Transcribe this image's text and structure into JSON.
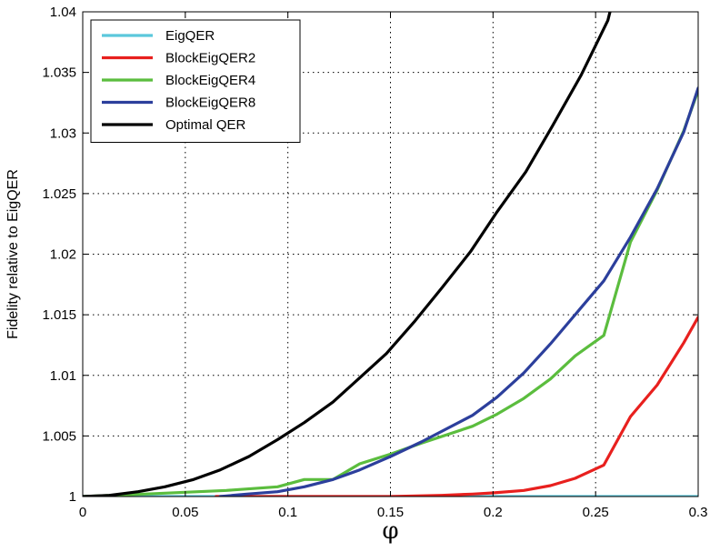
{
  "chart_data": {
    "type": "line",
    "title": "",
    "xlabel": "φ",
    "ylabel": "Fidelity relative to EigQER",
    "xlim": [
      0,
      0.3
    ],
    "ylim": [
      1,
      1.04
    ],
    "xticks": [
      0,
      0.05,
      0.1,
      0.15,
      0.2,
      0.25,
      0.3
    ],
    "xtick_labels": [
      "0",
      "0.05",
      "0.1",
      "0.15",
      "0.2",
      "0.25",
      "0.3"
    ],
    "yticks": [
      1,
      1.005,
      1.01,
      1.015,
      1.02,
      1.025,
      1.03,
      1.035,
      1.04
    ],
    "ytick_labels": [
      "1",
      "1.005",
      "1.01",
      "1.015",
      "1.02",
      "1.025",
      "1.03",
      "1.035",
      "1.04"
    ],
    "grid": true,
    "legend_position": "top-left",
    "series": [
      {
        "name": "EigQER",
        "color": "#5bc8dc",
        "points": [
          [
            0,
            1.0
          ],
          [
            0.3,
            1.0
          ]
        ]
      },
      {
        "name": "BlockEigQER2",
        "color": "#e8201e",
        "points": [
          [
            0.065,
            1.0
          ],
          [
            0.1,
            1.0
          ],
          [
            0.15,
            1.0
          ],
          [
            0.175,
            1.0001
          ],
          [
            0.19,
            1.0002
          ],
          [
            0.2,
            1.0003
          ],
          [
            0.215,
            1.0005
          ],
          [
            0.228,
            1.0009
          ],
          [
            0.24,
            1.0015
          ],
          [
            0.254,
            1.0026
          ],
          [
            0.267,
            1.0066
          ],
          [
            0.28,
            1.0092
          ],
          [
            0.293,
            1.0127
          ],
          [
            0.3,
            1.0148
          ]
        ]
      },
      {
        "name": "BlockEigQER4",
        "color": "#5bbd3e",
        "points": [
          [
            0,
            1.0
          ],
          [
            0.03,
            1.0002
          ],
          [
            0.07,
            1.0005
          ],
          [
            0.095,
            1.0008
          ],
          [
            0.108,
            1.0014
          ],
          [
            0.122,
            1.0014
          ],
          [
            0.135,
            1.0027
          ],
          [
            0.15,
            1.0035
          ],
          [
            0.165,
            1.0044
          ],
          [
            0.19,
            1.0058
          ],
          [
            0.202,
            1.0068
          ],
          [
            0.215,
            1.0081
          ],
          [
            0.228,
            1.0097
          ],
          [
            0.24,
            1.0116
          ],
          [
            0.254,
            1.0133
          ],
          [
            0.267,
            1.021
          ],
          [
            0.28,
            1.0253
          ],
          [
            0.293,
            1.0302
          ],
          [
            0.3,
            1.0335
          ]
        ]
      },
      {
        "name": "BlockEigQER8",
        "color": "#2c3f9c",
        "points": [
          [
            0.067,
            1.0
          ],
          [
            0.08,
            1.0002
          ],
          [
            0.095,
            1.0004
          ],
          [
            0.108,
            1.0008
          ],
          [
            0.122,
            1.0014
          ],
          [
            0.135,
            1.0022
          ],
          [
            0.15,
            1.0033
          ],
          [
            0.165,
            1.0045
          ],
          [
            0.19,
            1.0067
          ],
          [
            0.202,
            1.0082
          ],
          [
            0.215,
            1.0102
          ],
          [
            0.228,
            1.0126
          ],
          [
            0.24,
            1.015
          ],
          [
            0.254,
            1.0178
          ],
          [
            0.267,
            1.0214
          ],
          [
            0.28,
            1.0254
          ],
          [
            0.293,
            1.0301
          ],
          [
            0.3,
            1.0337
          ]
        ]
      },
      {
        "name": "Optimal QER",
        "color": "#000000",
        "points": [
          [
            0,
            1.0
          ],
          [
            0.013,
            1.0001
          ],
          [
            0.027,
            1.0004
          ],
          [
            0.04,
            1.0008
          ],
          [
            0.054,
            1.0014
          ],
          [
            0.067,
            1.0022
          ],
          [
            0.081,
            1.0033
          ],
          [
            0.095,
            1.0047
          ],
          [
            0.108,
            1.0061
          ],
          [
            0.122,
            1.0078
          ],
          [
            0.135,
            1.0098
          ],
          [
            0.148,
            1.0118
          ],
          [
            0.162,
            1.0145
          ],
          [
            0.175,
            1.0172
          ],
          [
            0.189,
            1.0202
          ],
          [
            0.202,
            1.0235
          ],
          [
            0.216,
            1.0268
          ],
          [
            0.229,
            1.0306
          ],
          [
            0.243,
            1.0348
          ],
          [
            0.256,
            1.0393
          ],
          [
            0.257,
            1.04
          ]
        ]
      }
    ]
  }
}
